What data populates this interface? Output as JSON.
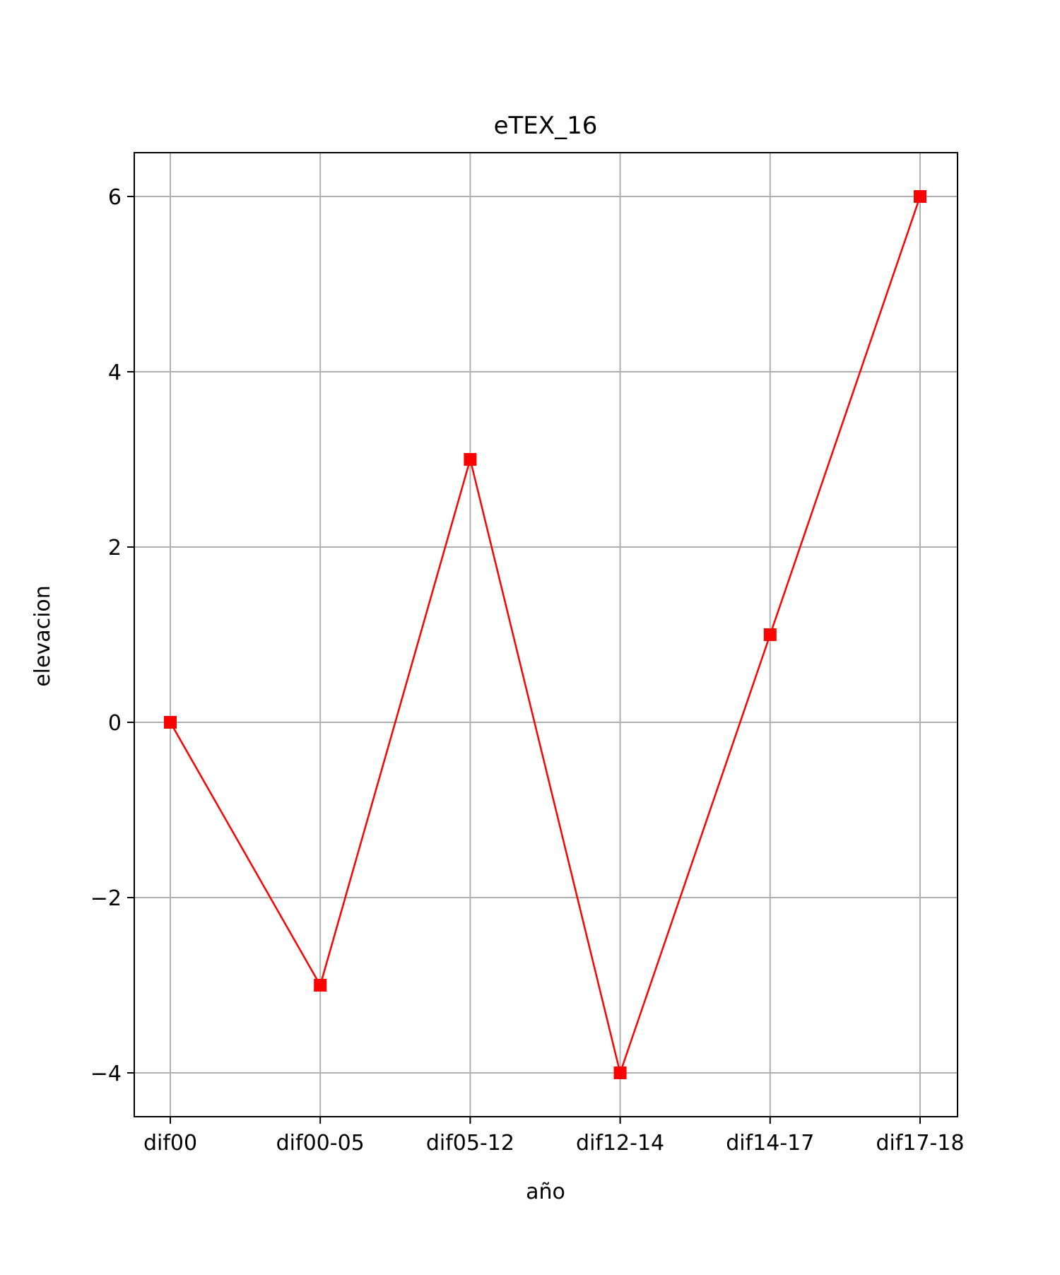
{
  "chart_data": {
    "type": "line",
    "title": "eTEX_16",
    "xlabel": "año",
    "ylabel": "elevacion",
    "categories": [
      "dif00",
      "dif00-05",
      "dif05-12",
      "dif12-14",
      "dif14-17",
      "dif17-18"
    ],
    "series": [
      {
        "values": [
          0,
          -3,
          3,
          -4,
          1,
          6
        ],
        "color": "#ff0000",
        "marker": "square"
      }
    ],
    "ylim": [
      -4.5,
      6.5
    ],
    "yticks": [
      -4,
      -2,
      0,
      2,
      4,
      6
    ],
    "ytick_labels": [
      "−4",
      "−2",
      "0",
      "2",
      "4",
      "6"
    ],
    "grid": true,
    "grid_color": "#b0b0b0",
    "legend": "none"
  }
}
